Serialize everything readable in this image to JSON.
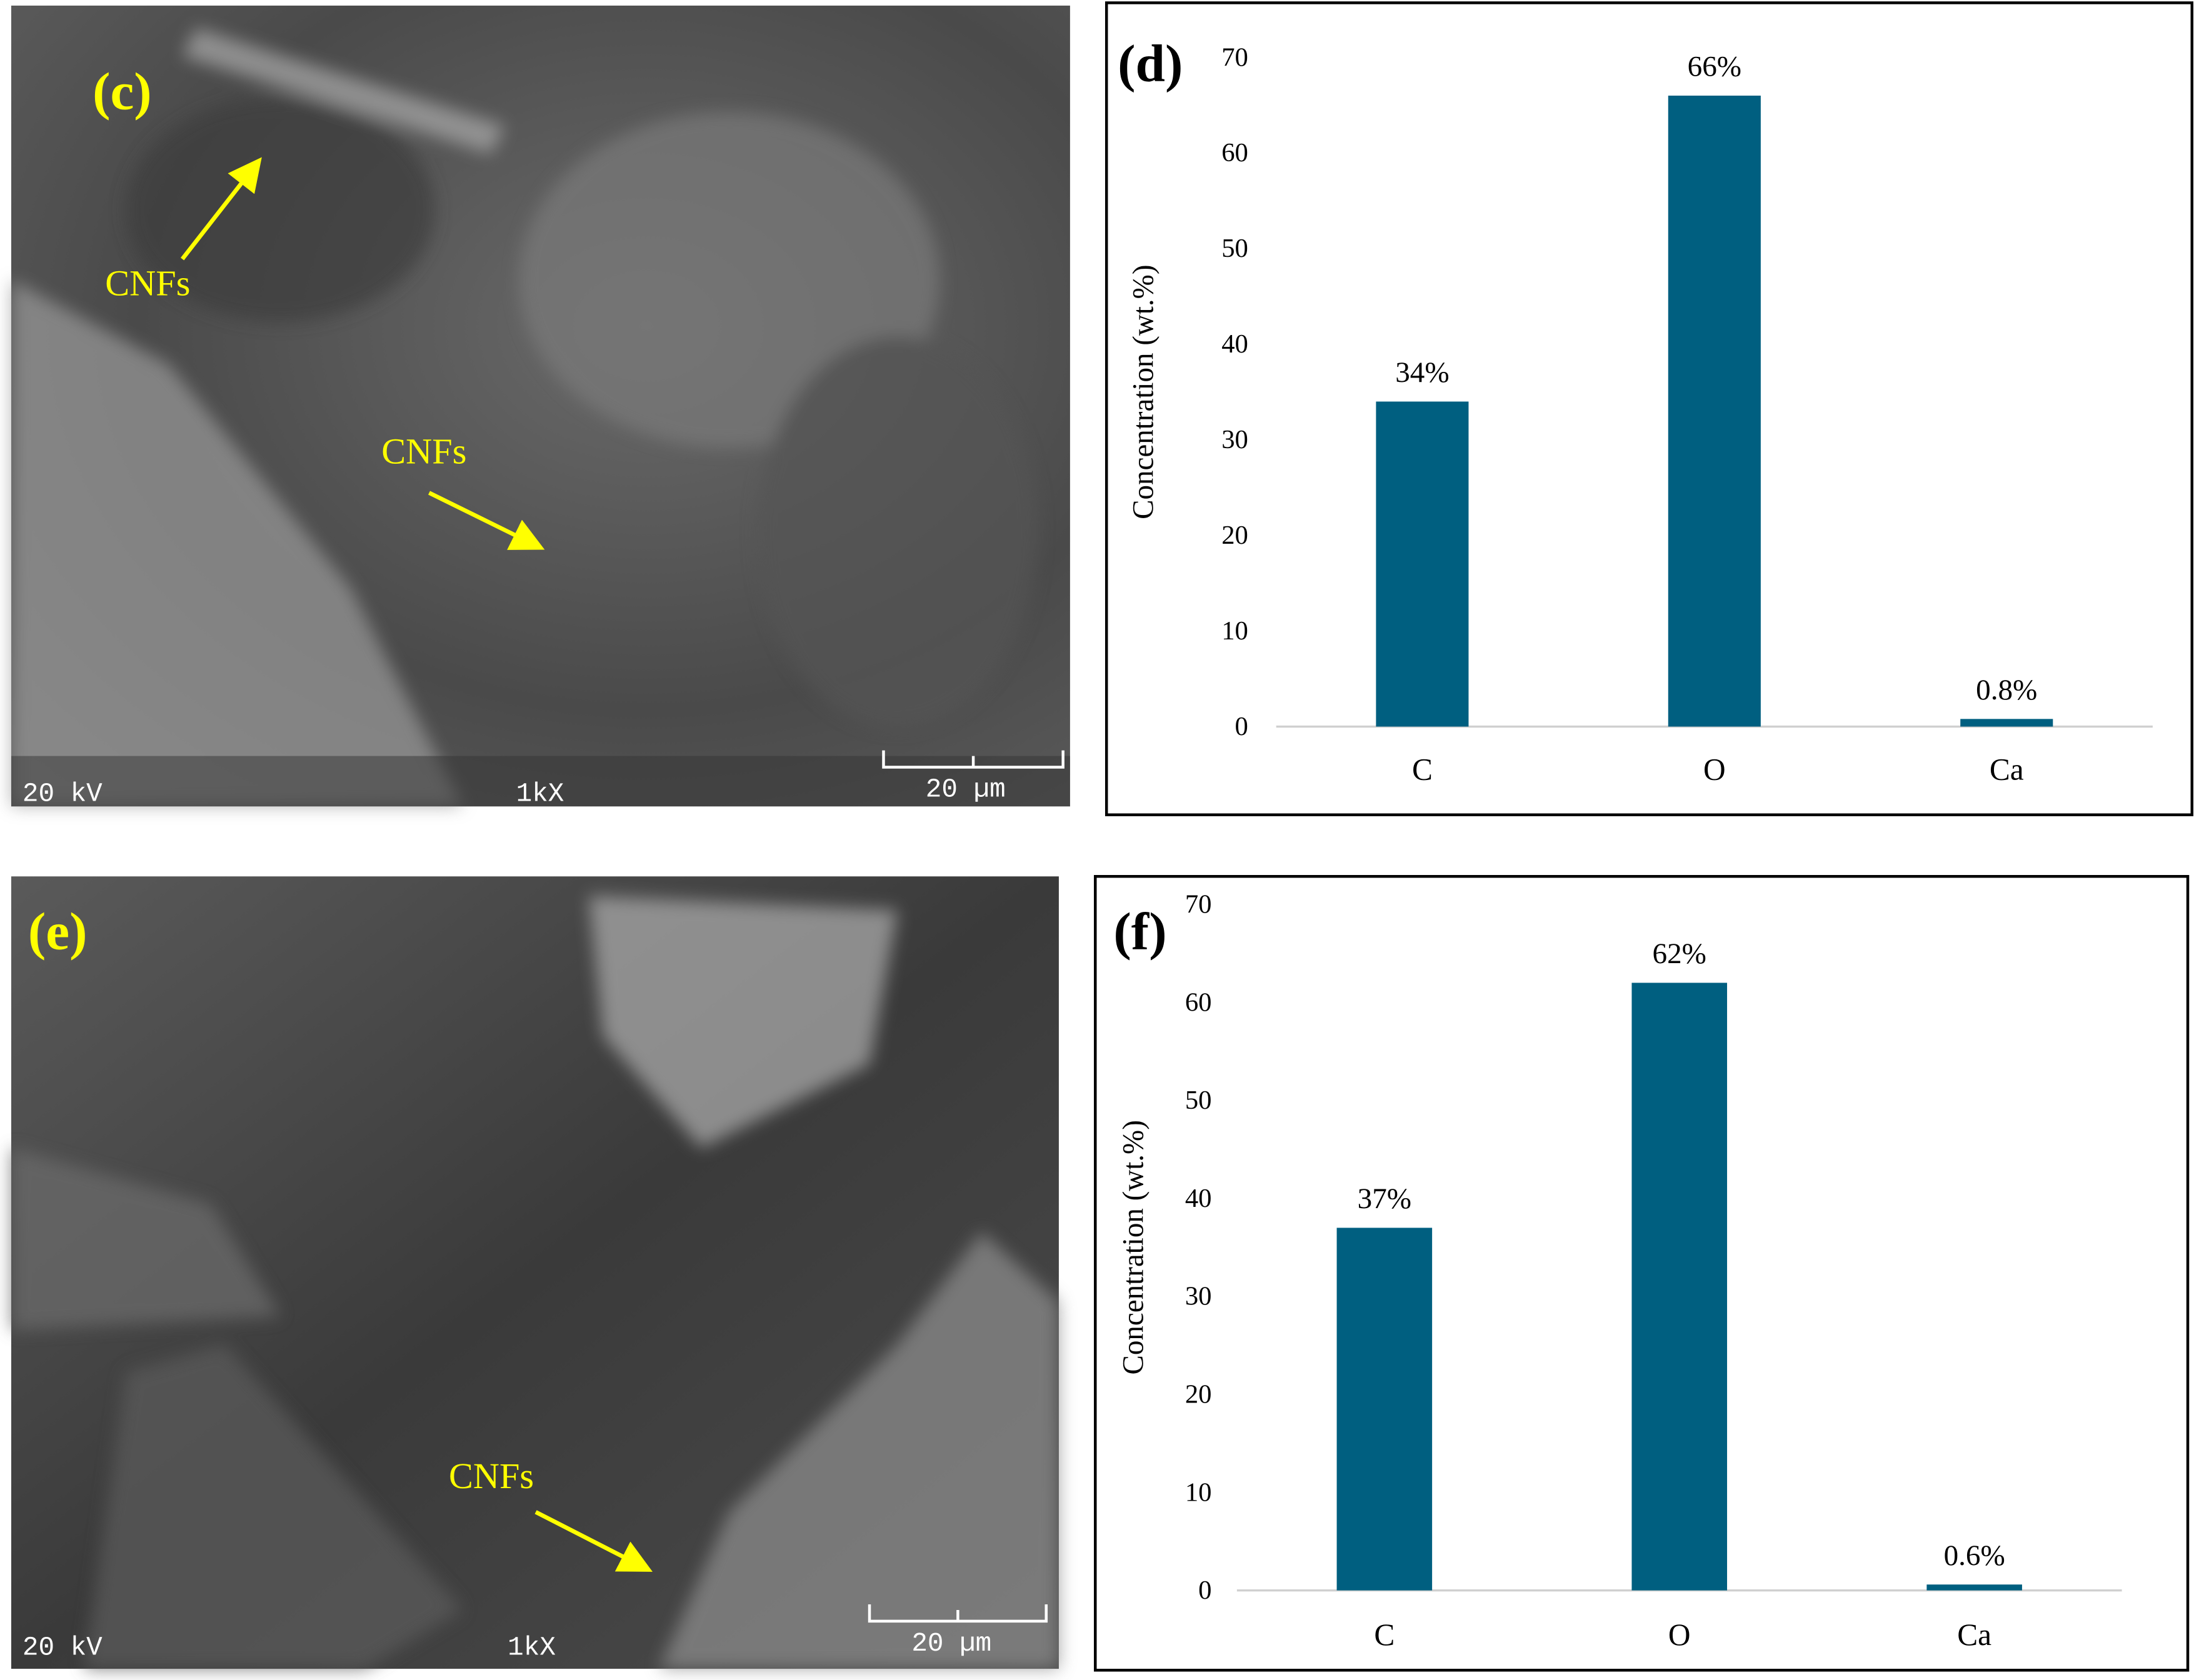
{
  "panels": [
    {
      "label": "(c)",
      "annotations": [
        "CNFs",
        "CNFs"
      ],
      "voltage": "20 kV",
      "magnification": "1kX",
      "scale_bar": "20 µm"
    },
    {
      "label": "(e)",
      "annotations": [
        "CNFs"
      ],
      "voltage": "20 kV",
      "magnification": "1kX",
      "scale_bar": "20 µm"
    }
  ],
  "chart_data": [
    {
      "type": "bar",
      "title": "(d)",
      "y_label": "Concentration (wt.%)",
      "categories": [
        "C",
        "O",
        "Ca"
      ],
      "values": [
        34,
        66,
        0.8
      ],
      "value_labels": [
        "34%",
        "66%",
        "0.8%"
      ],
      "color": "#005f80",
      "ylim": [
        0,
        70
      ],
      "yticks": [
        0,
        10,
        20,
        30,
        40,
        50,
        60,
        70
      ],
      "grid": false
    },
    {
      "type": "bar",
      "title": "(f)",
      "y_label": "Concentration (wt.%)",
      "categories": [
        "C",
        "O",
        "Ca"
      ],
      "values": [
        37,
        62,
        0.6
      ],
      "value_labels": [
        "37%",
        "62%",
        "0.6%"
      ],
      "color": "#005f80",
      "ylim": [
        0,
        70
      ],
      "yticks": [
        0,
        10,
        20,
        30,
        40,
        50,
        60,
        70
      ],
      "grid": false
    }
  ]
}
